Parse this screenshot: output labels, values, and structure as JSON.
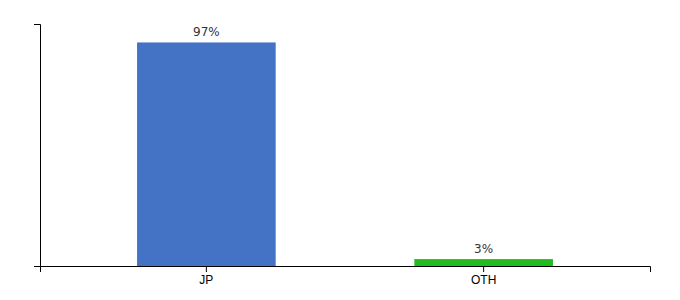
{
  "chart_data": {
    "type": "bar",
    "categories": [
      "JP",
      "OTH"
    ],
    "values": [
      97,
      3
    ],
    "value_labels": [
      "97%",
      "3%"
    ],
    "colors": [
      "#4472c4",
      "#22bb22"
    ],
    "ylim": [
      0,
      105
    ],
    "data_labels": true,
    "tick_labels": "x"
  }
}
